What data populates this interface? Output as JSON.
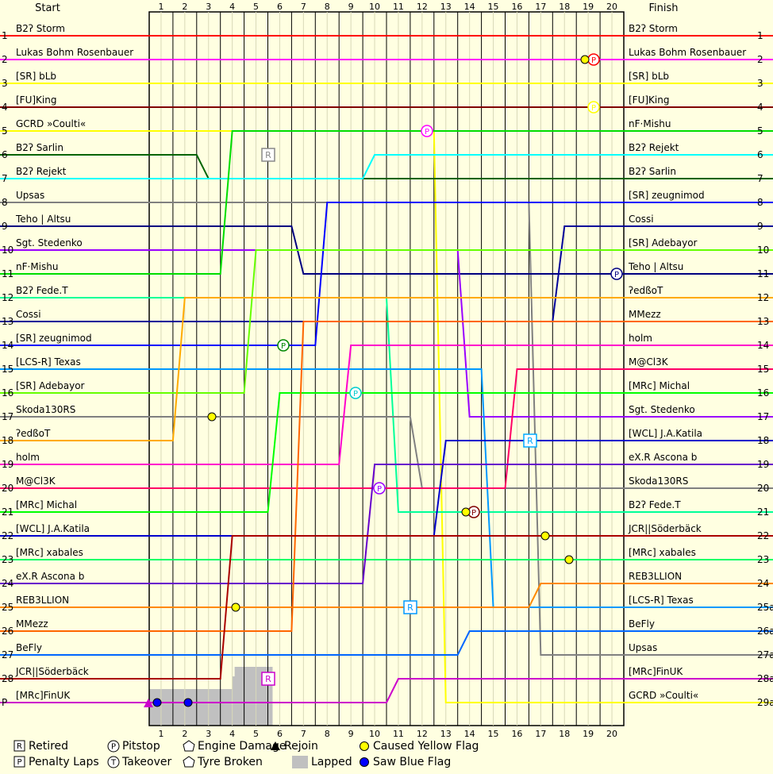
{
  "chart_data": {
    "type": "line",
    "header": {
      "start": "Start",
      "finish": "Finish"
    },
    "laps": [
      "1",
      "2",
      "3",
      "4",
      "5",
      "6",
      "7",
      "8",
      "9",
      "10",
      "11",
      "12",
      "13",
      "14",
      "15",
      "16",
      "17",
      "18",
      "19",
      "20"
    ],
    "start_positions": [
      "1",
      "2",
      "3",
      "4",
      "5",
      "6",
      "7",
      "8",
      "9",
      "10",
      "11",
      "12",
      "13",
      "14",
      "15",
      "16",
      "17",
      "18",
      "19",
      "20",
      "21",
      "22",
      "23",
      "24",
      "25",
      "26",
      "27",
      "28",
      "P"
    ],
    "finish_positions": [
      "1",
      "2",
      "3",
      "4",
      "5",
      "6",
      "7",
      "8",
      "9",
      "10",
      "11",
      "12",
      "13",
      "14",
      "15",
      "16",
      "17",
      "18",
      "19",
      "20",
      "21",
      "22",
      "23",
      "24",
      "25a",
      "26a",
      "27a",
      "28a",
      "29a"
    ],
    "start_grid": [
      "B2ʔ Storm",
      "Lukas Bohm Rosenbauer",
      "[SR] bLb",
      "[FU]King",
      "GCRD »Coulti«",
      "B2ʔ Sarlin",
      "B2ʔ Rejekt",
      "Upsas",
      "Teho | Altsu",
      "Sgt. Stedenko",
      "nF·Mishu",
      "B2ʔ Fede.T",
      "Cossi",
      "[SR] zeugnimod",
      "[LCS-R] Texas",
      "[SR] Adebayor",
      "Skoda130RS",
      "ʔedßoT",
      "holm",
      "M@Cl3K",
      "[MRc] Michal",
      "[WCL] J.A.Katila",
      "[MRc] xabales",
      "eX.R Ascona b",
      "REB3LLION",
      "MMezz",
      "BeFly",
      "JCR||Söderbäck",
      "[MRc]FinUK"
    ],
    "finish_order": [
      "B2ʔ Storm",
      "Lukas Bohm Rosenbauer",
      "[SR] bLb",
      "[FU]King",
      "nF·Mishu",
      "B2ʔ Rejekt",
      "B2ʔ Sarlin",
      "[SR] zeugnimod",
      "Cossi",
      "[SR] Adebayor",
      "Teho | Altsu",
      "ʔedßoT",
      "MMezz",
      "holm",
      "M@Cl3K",
      "[MRc] Michal",
      "Sgt. Stedenko",
      "[WCL] J.A.Katila",
      "eX.R Ascona b",
      "Skoda130RS",
      "B2ʔ Fede.T",
      "JCR||Söderbäck",
      "[MRc] xabales",
      "REB3LLION",
      "[LCS-R] Texas",
      "BeFly",
      "Upsas",
      "[MRc]FinUK",
      "GCRD »Coulti«"
    ],
    "series_colors": {
      "B2ʔ Storm": "#ff0000",
      "Lukas Bohm Rosenbauer": "#ff00ff",
      "[SR] bLb": "#ffff00",
      "[FU]King": "#800000",
      "GCRD »Coulti«": "#ffff00",
      "B2ʔ Sarlin": "#006400",
      "B2ʔ Rejekt": "#00ffff",
      "Upsas": "#808080",
      "Teho | Altsu": "#000080",
      "Sgt. Stedenko": "#9900ff",
      "nF·Mishu": "#00dd00",
      "B2ʔ Fede.T": "#00ff99",
      "Cossi": "#000099",
      "[SR] zeugnimod": "#0000ff",
      "[LCS-R] Texas": "#0099ff",
      "[SR] Adebayor": "#66ff00",
      "Skoda130RS": "#808080",
      "ʔedßoT": "#ffaa00",
      "holm": "#ff00cc",
      "M@Cl3K": "#ff0066",
      "[MRc] Michal": "#00ff00",
      "[WCL] J.A.Katila": "#0000cc",
      "[MRc] xabales": "#00ff66",
      "eX.R Ascona b": "#6600cc",
      "REB3LLION": "#ff8800",
      "MMezz": "#ff6600",
      "BeFly": "#0066ff",
      "JCR||Söderbäck": "#aa0000",
      "[MRc]FinUK": "#cc00cc"
    },
    "lapped_laps": [
      1,
      2,
      3,
      4,
      5
    ],
    "legend": [
      {
        "mark": "R",
        "label": "Retired",
        "kind": "box"
      },
      {
        "mark": "P",
        "label": "Pitstop",
        "kind": "circle"
      },
      {
        "mark": "",
        "label": "Engine Damage",
        "kind": "engine"
      },
      {
        "mark": "",
        "label": "Rejoin",
        "kind": "triangle"
      },
      {
        "mark": "",
        "label": "Caused Yellow Flag",
        "kind": "yellow"
      },
      {
        "mark": "P",
        "label": "Penalty Laps",
        "kind": "box"
      },
      {
        "mark": "T",
        "label": "Takeover",
        "kind": "circle"
      },
      {
        "mark": "",
        "label": "Tyre Broken",
        "kind": "tyre"
      },
      {
        "mark": "",
        "label": "Lapped",
        "kind": "lapped"
      },
      {
        "mark": "",
        "label": "Saw Blue Flag",
        "kind": "blue"
      }
    ]
  }
}
